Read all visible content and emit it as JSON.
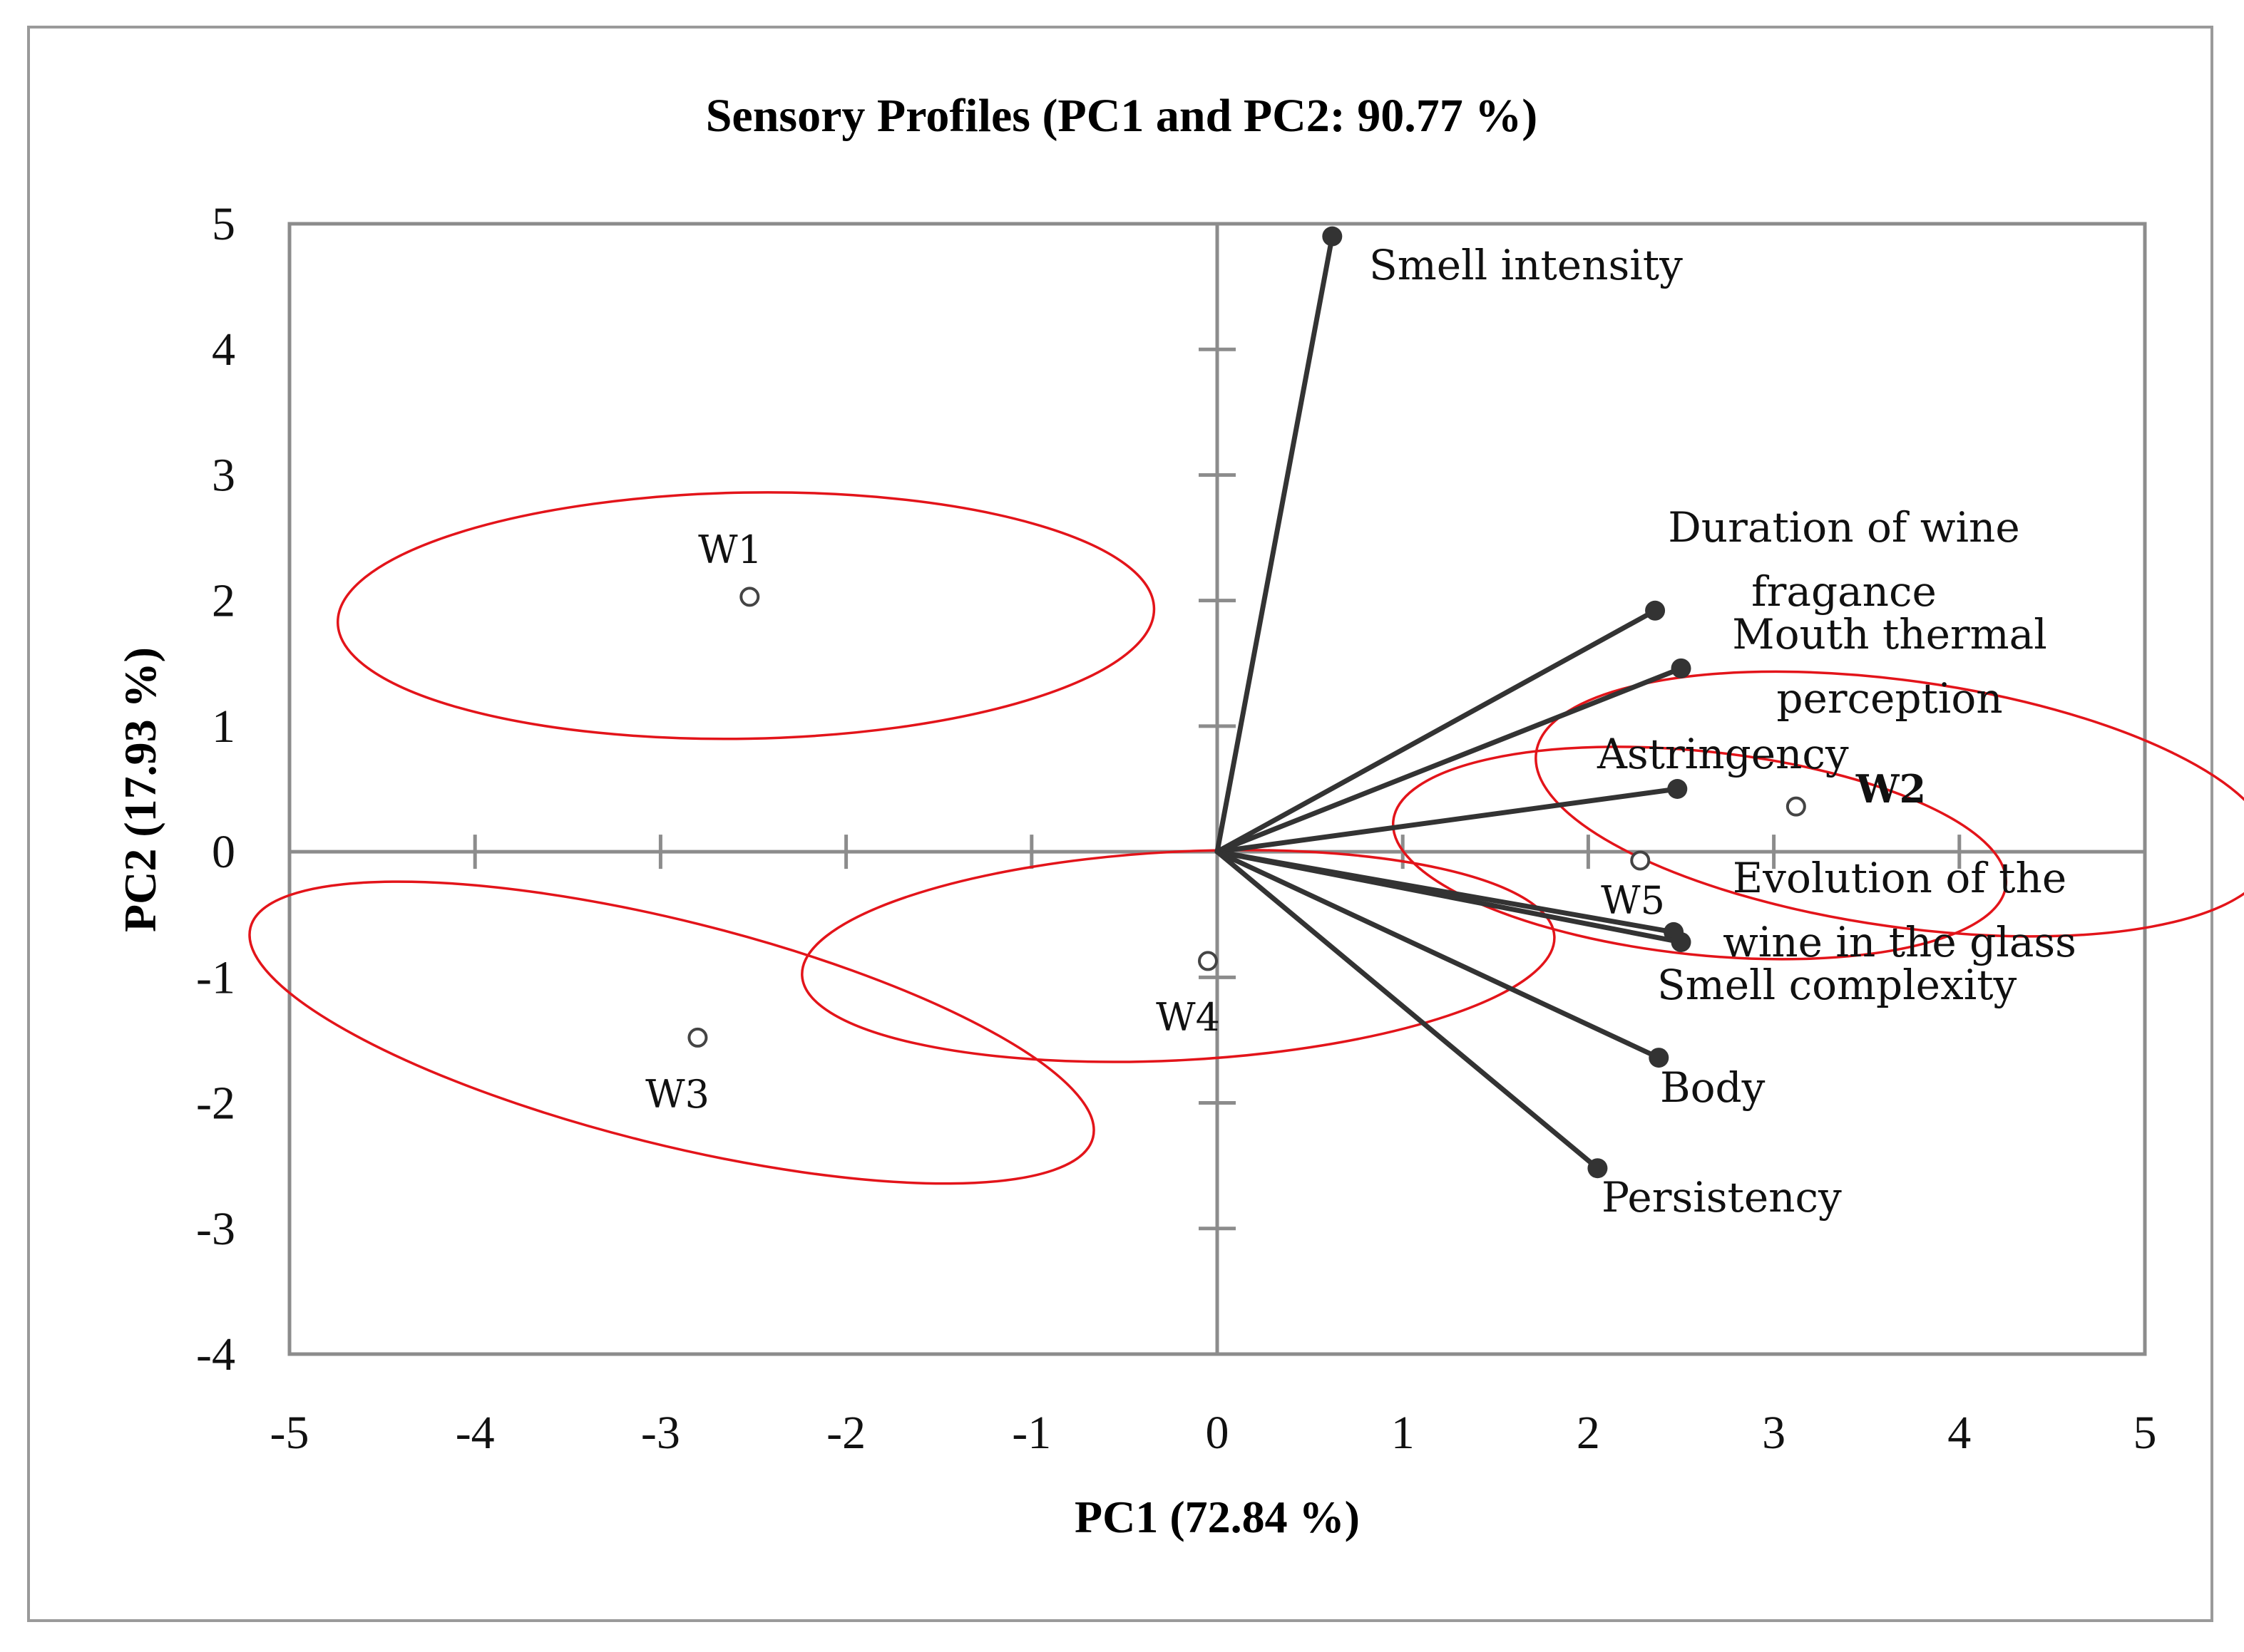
{
  "chart_data": {
    "type": "scatter",
    "title": "Sensory Profiles (PC1 and PC2: 90.77 %)",
    "xlabel": "PC1 (72.84 %)",
    "ylabel": "PC2 (17.93 %)",
    "xlim": [
      -5,
      5
    ],
    "ylim": [
      -4,
      5
    ],
    "xticks": [
      "-5",
      "-4",
      "-3",
      "-2",
      "-1",
      "0",
      "1",
      "2",
      "3",
      "4",
      "5"
    ],
    "yticks": [
      "5",
      "4",
      "3",
      "2",
      "1",
      "0",
      "-1",
      "-2",
      "-3",
      "-4"
    ],
    "colors": {
      "axis": "#8c8c8c",
      "vector": "#333333",
      "ellipse": "#e3141a",
      "sample": "#444444"
    },
    "variables": [
      {
        "name": "Smell intensity",
        "lines": [
          "Smell intensity"
        ],
        "x": 0.62,
        "y": 4.9
      },
      {
        "name": "Duration of wine fragance",
        "lines": [
          "Duration of wine",
          "fragance"
        ],
        "x": 2.36,
        "y": 1.92
      },
      {
        "name": "Mouth thermal perception",
        "lines": [
          "Mouth thermal",
          "perception"
        ],
        "x": 2.5,
        "y": 1.46
      },
      {
        "name": "Astringency",
        "lines": [
          "Astringency"
        ],
        "x": 2.48,
        "y": 0.5
      },
      {
        "name": "Evolution of the wine in the glass",
        "lines": [
          "Evolution of the",
          "wine in the glass"
        ],
        "x": 2.46,
        "y": -0.64
      },
      {
        "name": "Smell complexity",
        "lines": [
          "Smell complexity"
        ],
        "x": 2.5,
        "y": -0.72
      },
      {
        "name": "Body",
        "lines": [
          "Body"
        ],
        "x": 2.38,
        "y": -1.64
      },
      {
        "name": "Persistency",
        "lines": [
          "Persistency"
        ],
        "x": 2.05,
        "y": -2.52
      }
    ],
    "samples": [
      {
        "name": "W1",
        "x": -2.52,
        "y": 2.03
      },
      {
        "name": "W2",
        "x": 3.12,
        "y": 0.36
      },
      {
        "name": "W3",
        "x": -2.8,
        "y": -1.48
      },
      {
        "name": "W4",
        "x": -0.05,
        "y": -0.87
      },
      {
        "name": "W5",
        "x": 2.28,
        "y": -0.07
      }
    ],
    "confidence_ellipses": [
      {
        "group": "W1",
        "cx": -2.54,
        "cy": 1.88,
        "rx": 2.2,
        "ry": 0.98,
        "angle_deg": -1
      },
      {
        "group": "W2",
        "cx": 3.7,
        "cy": 0.38,
        "rx": 2.0,
        "ry": 0.98,
        "angle_deg": 8
      },
      {
        "group": "W3",
        "cx": -2.94,
        "cy": -1.44,
        "rx": 2.34,
        "ry": 0.89,
        "angle_deg": 14
      },
      {
        "group": "W4",
        "cx": -0.21,
        "cy": -0.83,
        "rx": 2.03,
        "ry": 0.83,
        "angle_deg": -3
      },
      {
        "group": "W5",
        "cx": 2.6,
        "cy": -0.01,
        "rx": 1.66,
        "ry": 0.81,
        "angle_deg": 6
      }
    ]
  }
}
